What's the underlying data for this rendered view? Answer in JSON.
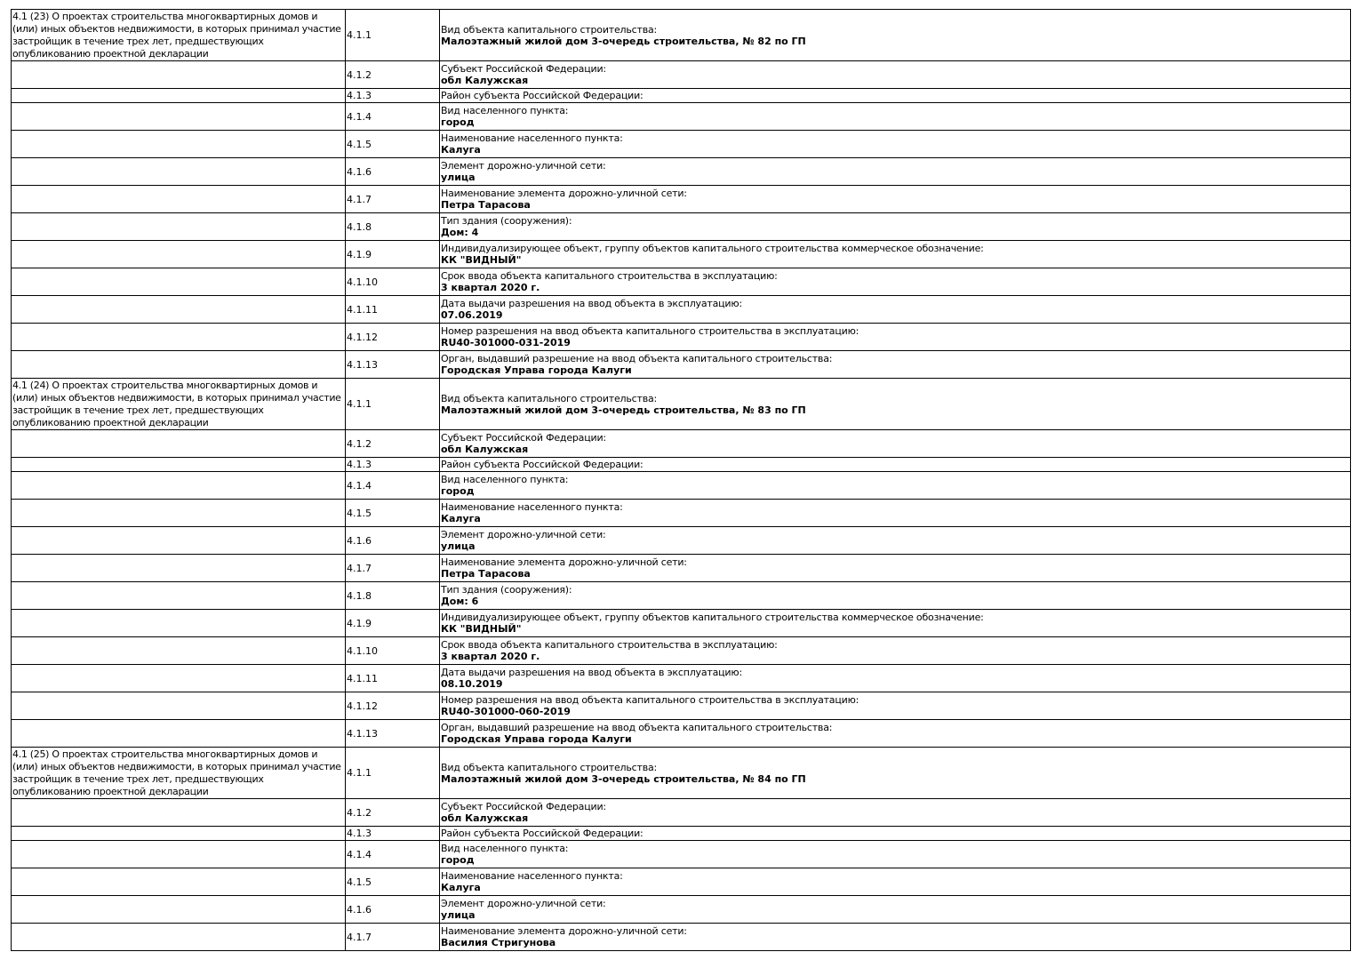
{
  "blocks": [
    {
      "header": "4.1 (23) О проектах строительства многоквартирных домов и (или) иных объектов недвижимости, в которых принимал участие застройщик в течение трех лет, предшествующих опубликованию проектной декларации",
      "rows": [
        {
          "num": "4.1.1",
          "label": "Вид объекта капитального строительства:",
          "value": "Малоэтажный жилой дом 3-очередь строительства, № 82 по ГП"
        },
        {
          "num": "4.1.2",
          "label": "Субъект Российской Федерации:",
          "value": "обл Калужская"
        },
        {
          "num": "4.1.3",
          "label": "Район субъекта Российской Федерации:",
          "value": ""
        },
        {
          "num": "4.1.4",
          "label": "Вид населенного пункта:",
          "value": "город"
        },
        {
          "num": "4.1.5",
          "label": "Наименование населенного пункта:",
          "value": "Калуга"
        },
        {
          "num": "4.1.6",
          "label": "Элемент дорожно-уличной сети:",
          "value": "улица"
        },
        {
          "num": "4.1.7",
          "label": "Наименование элемента дорожно-уличной сети:",
          "value": "Петра Тарасова"
        },
        {
          "num": "4.1.8",
          "label": "Тип здания (сооружения):",
          "value": "Дом: 4"
        },
        {
          "num": "4.1.9",
          "label": "Индивидуализирующее объект, группу объектов капитального строительства коммерческое обозначение:",
          "value": "КК \"ВИДНЫЙ\""
        },
        {
          "num": "4.1.10",
          "label": "Срок ввода объекта капитального строительства в эксплуатацию:",
          "value": "3 квартал 2020 г."
        },
        {
          "num": "4.1.11",
          "label": "Дата выдачи разрешения на ввод объекта в эксплуатацию:",
          "value": "07.06.2019"
        },
        {
          "num": "4.1.12",
          "label": "Номер разрешения на ввод объекта капитального строительства в эксплуатацию:",
          "value": "RU40-301000-031-2019"
        },
        {
          "num": "4.1.13",
          "label": "Орган, выдавший разрешение на ввод объекта капитального строительства:",
          "value": "Городская Управа города Калуги"
        }
      ]
    },
    {
      "header": "4.1 (24) О проектах строительства многоквартирных домов и (или) иных объектов недвижимости, в которых принимал участие застройщик в течение трех лет, предшествующих опубликованию проектной декларации",
      "rows": [
        {
          "num": "4.1.1",
          "label": "Вид объекта капитального строительства:",
          "value": "Малоэтажный жилой дом 3-очередь строительства, № 83 по ГП"
        },
        {
          "num": "4.1.2",
          "label": "Субъект Российской Федерации:",
          "value": "обл Калужская"
        },
        {
          "num": "4.1.3",
          "label": "Район субъекта Российской Федерации:",
          "value": ""
        },
        {
          "num": "4.1.4",
          "label": "Вид населенного пункта:",
          "value": "город"
        },
        {
          "num": "4.1.5",
          "label": "Наименование населенного пункта:",
          "value": "Калуга"
        },
        {
          "num": "4.1.6",
          "label": "Элемент дорожно-уличной сети:",
          "value": "улица"
        },
        {
          "num": "4.1.7",
          "label": "Наименование элемента дорожно-уличной сети:",
          "value": "Петра Тарасова"
        },
        {
          "num": "4.1.8",
          "label": "Тип здания (сооружения):",
          "value": "Дом: 6"
        },
        {
          "num": "4.1.9",
          "label": "Индивидуализирующее объект, группу объектов капитального строительства коммерческое обозначение:",
          "value": "КК \"ВИДНЫЙ\""
        },
        {
          "num": "4.1.10",
          "label": "Срок ввода объекта капитального строительства в эксплуатацию:",
          "value": "3 квартал 2020 г."
        },
        {
          "num": "4.1.11",
          "label": "Дата выдачи разрешения на ввод объекта в эксплуатацию:",
          "value": "08.10.2019"
        },
        {
          "num": "4.1.12",
          "label": "Номер разрешения на ввод объекта капитального строительства в эксплуатацию:",
          "value": "RU40-301000-060-2019"
        },
        {
          "num": "4.1.13",
          "label": "Орган, выдавший разрешение на ввод объекта капитального строительства:",
          "value": "Городская Управа города Калуги"
        }
      ]
    },
    {
      "header": "4.1 (25) О проектах строительства многоквартирных домов и (или) иных объектов недвижимости, в которых принимал участие застройщик в течение трех лет, предшествующих опубликованию проектной декларации",
      "rows": [
        {
          "num": "4.1.1",
          "label": "Вид объекта капитального строительства:",
          "value": "Малоэтажный жилой дом 3-очередь строительства, № 84 по ГП"
        },
        {
          "num": "4.1.2",
          "label": "Субъект Российской Федерации:",
          "value": "обл Калужская"
        },
        {
          "num": "4.1.3",
          "label": "Район субъекта Российской Федерации:",
          "value": ""
        },
        {
          "num": "4.1.4",
          "label": "Вид населенного пункта:",
          "value": "город"
        },
        {
          "num": "4.1.5",
          "label": "Наименование населенного пункта:",
          "value": "Калуга"
        },
        {
          "num": "4.1.6",
          "label": "Элемент дорожно-уличной сети:",
          "value": "улица"
        },
        {
          "num": "4.1.7",
          "label": "Наименование элемента дорожно-уличной сети:",
          "value": "Василия Стригунова"
        }
      ]
    }
  ]
}
